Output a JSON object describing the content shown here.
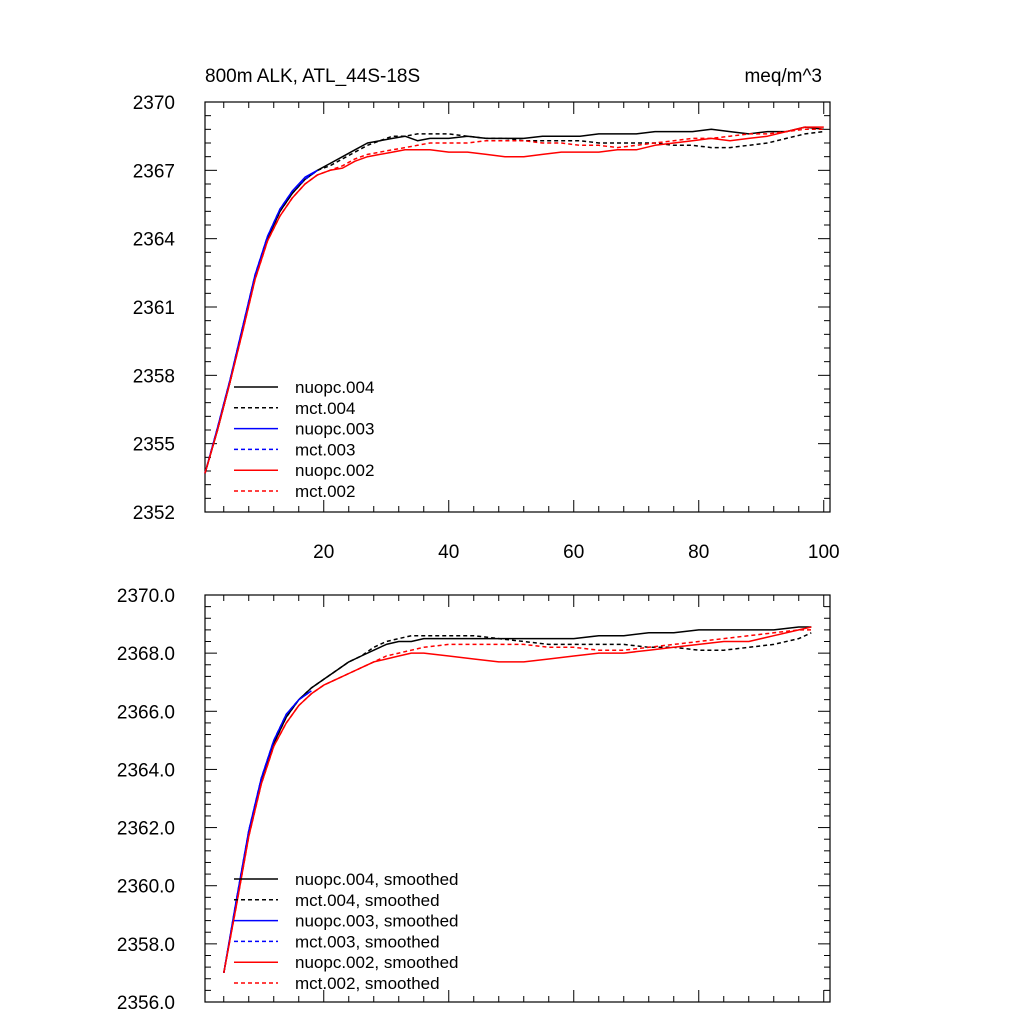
{
  "chart_data": [
    {
      "type": "line",
      "title": "800m ALK, ATL_44S-18S",
      "units": "meq/m^3",
      "xlabel": "",
      "ylabel": "",
      "xlim": [
        1,
        101
      ],
      "ylim": [
        2352,
        2370
      ],
      "x_ticks": [
        20,
        40,
        60,
        80,
        100
      ],
      "x_tick_labels": [
        "20",
        "40",
        "60",
        "80",
        "100"
      ],
      "y_ticks": [
        2352,
        2355,
        2358,
        2361,
        2364,
        2367,
        2370
      ],
      "y_tick_labels": [
        "2352",
        "2355",
        "2358",
        "2361",
        "2364",
        "2367",
        "2370"
      ],
      "legend_position": "bottom-left",
      "series": [
        {
          "name": "nuopc.004",
          "color": "#000000",
          "dash": "solid",
          "x": [
            1,
            3,
            5,
            7,
            9,
            11,
            13,
            15,
            17,
            19,
            21,
            23,
            25,
            27,
            29,
            31,
            33,
            35,
            37,
            40,
            43,
            46,
            49,
            52,
            55,
            58,
            61,
            64,
            67,
            70,
            73,
            76,
            79,
            82,
            85,
            88,
            91,
            94,
            97,
            100
          ],
          "y": [
            2353.7,
            2355.6,
            2357.7,
            2360.0,
            2362.3,
            2364.0,
            2365.2,
            2366.0,
            2366.6,
            2367.0,
            2367.3,
            2367.6,
            2367.9,
            2368.2,
            2368.3,
            2368.4,
            2368.5,
            2368.3,
            2368.4,
            2368.4,
            2368.5,
            2368.4,
            2368.4,
            2368.4,
            2368.5,
            2368.5,
            2368.5,
            2368.6,
            2368.6,
            2368.6,
            2368.7,
            2368.7,
            2368.7,
            2368.8,
            2368.7,
            2368.6,
            2368.7,
            2368.7,
            2368.9,
            2368.8
          ]
        },
        {
          "name": "mct.004",
          "color": "#000000",
          "dash": "dashed",
          "x": [
            1,
            3,
            5,
            7,
            9,
            11,
            13,
            15,
            17,
            19,
            21,
            23,
            25,
            27,
            29,
            31,
            33,
            35,
            37,
            40,
            43,
            46,
            49,
            52,
            55,
            58,
            61,
            64,
            67,
            70,
            73,
            76,
            79,
            82,
            85,
            88,
            91,
            94,
            97,
            100
          ],
          "y": [
            2353.7,
            2355.6,
            2357.7,
            2360.0,
            2362.3,
            2364.0,
            2365.2,
            2366.0,
            2366.6,
            2367.0,
            2367.2,
            2367.5,
            2367.8,
            2368.1,
            2368.3,
            2368.5,
            2368.5,
            2368.6,
            2368.6,
            2368.6,
            2368.5,
            2368.4,
            2368.4,
            2368.3,
            2368.3,
            2368.3,
            2368.3,
            2368.2,
            2368.2,
            2368.2,
            2368.2,
            2368.1,
            2368.1,
            2368.0,
            2368.0,
            2368.1,
            2368.2,
            2368.4,
            2368.6,
            2368.7
          ]
        },
        {
          "name": "nuopc.003",
          "color": "#0000ff",
          "dash": "solid",
          "x": [
            1,
            3,
            5,
            7,
            9,
            11,
            13,
            15,
            17,
            19
          ],
          "y": [
            2353.7,
            2355.7,
            2357.8,
            2360.1,
            2362.4,
            2364.1,
            2365.3,
            2366.1,
            2366.7,
            2367.0
          ]
        },
        {
          "name": "mct.003",
          "color": "#0000ff",
          "dash": "dashed",
          "x": [
            1,
            3,
            5,
            7,
            9,
            11,
            13,
            15,
            17,
            19
          ],
          "y": [
            2353.7,
            2355.7,
            2357.8,
            2360.1,
            2362.4,
            2364.1,
            2365.3,
            2366.1,
            2366.6,
            2367.0
          ]
        },
        {
          "name": "nuopc.002",
          "color": "#ff0000",
          "dash": "solid",
          "x": [
            1,
            3,
            5,
            7,
            9,
            11,
            13,
            15,
            17,
            19,
            21,
            23,
            25,
            27,
            29,
            31,
            33,
            35,
            37,
            40,
            43,
            46,
            49,
            52,
            55,
            58,
            61,
            64,
            67,
            70,
            73,
            76,
            79,
            82,
            85,
            88,
            91,
            94,
            97,
            100
          ],
          "y": [
            2353.7,
            2355.6,
            2357.7,
            2359.9,
            2362.2,
            2363.9,
            2365.0,
            2365.8,
            2366.4,
            2366.8,
            2367.0,
            2367.1,
            2367.4,
            2367.6,
            2367.7,
            2367.8,
            2367.9,
            2367.9,
            2367.9,
            2367.8,
            2367.8,
            2367.7,
            2367.6,
            2367.6,
            2367.7,
            2367.8,
            2367.8,
            2367.8,
            2367.9,
            2367.9,
            2368.1,
            2368.2,
            2368.3,
            2368.4,
            2368.3,
            2368.4,
            2368.5,
            2368.7,
            2368.9,
            2368.9
          ]
        },
        {
          "name": "mct.002",
          "color": "#ff0000",
          "dash": "dashed",
          "x": [
            1,
            3,
            5,
            7,
            9,
            11,
            13,
            15,
            17,
            19,
            21,
            23,
            25,
            27,
            29,
            31,
            33,
            35,
            37,
            40,
            43,
            46,
            49,
            52,
            55,
            58,
            61,
            64,
            67,
            70,
            73,
            76,
            79,
            82,
            85,
            88,
            91,
            94,
            97,
            100
          ],
          "y": [
            2353.7,
            2355.6,
            2357.7,
            2359.9,
            2362.2,
            2363.9,
            2365.0,
            2365.8,
            2366.4,
            2366.8,
            2367.0,
            2367.2,
            2367.5,
            2367.7,
            2367.8,
            2367.9,
            2368.0,
            2368.1,
            2368.2,
            2368.2,
            2368.2,
            2368.3,
            2368.3,
            2368.3,
            2368.2,
            2368.2,
            2368.1,
            2368.1,
            2368.0,
            2368.1,
            2368.2,
            2368.3,
            2368.4,
            2368.4,
            2368.5,
            2368.6,
            2368.6,
            2368.7,
            2368.8,
            2368.8
          ]
        }
      ]
    },
    {
      "type": "line",
      "title": "",
      "xlabel": "",
      "ylabel": "",
      "xlim": [
        1,
        101
      ],
      "ylim": [
        2356,
        2370
      ],
      "x_ticks": [
        20,
        40,
        60,
        80,
        100
      ],
      "x_tick_labels": [],
      "y_ticks": [
        2356,
        2358,
        2360,
        2362,
        2364,
        2366,
        2368,
        2370
      ],
      "y_tick_labels": [
        "2356.0",
        "2358.0",
        "2360.0",
        "2362.0",
        "2364.0",
        "2366.0",
        "2368.0",
        "2370.0"
      ],
      "legend_position": "bottom-left",
      "series": [
        {
          "name": "nuopc.004, smoothed",
          "color": "#000000",
          "dash": "solid",
          "x": [
            4,
            6,
            8,
            10,
            12,
            14,
            16,
            18,
            20,
            22,
            24,
            26,
            28,
            30,
            32,
            34,
            36,
            40,
            44,
            48,
            52,
            56,
            60,
            64,
            68,
            72,
            76,
            80,
            84,
            88,
            92,
            96,
            98
          ],
          "y": [
            2357.0,
            2359.4,
            2361.8,
            2363.6,
            2364.9,
            2365.8,
            2366.4,
            2366.8,
            2367.1,
            2367.4,
            2367.7,
            2367.9,
            2368.1,
            2368.3,
            2368.4,
            2368.4,
            2368.5,
            2368.5,
            2368.5,
            2368.5,
            2368.5,
            2368.5,
            2368.5,
            2368.6,
            2368.6,
            2368.7,
            2368.7,
            2368.8,
            2368.8,
            2368.8,
            2368.8,
            2368.9,
            2368.9
          ]
        },
        {
          "name": "mct.004, smoothed",
          "color": "#000000",
          "dash": "dashed",
          "x": [
            4,
            6,
            8,
            10,
            12,
            14,
            16,
            18,
            20,
            22,
            24,
            26,
            28,
            30,
            32,
            34,
            36,
            40,
            44,
            48,
            52,
            56,
            60,
            64,
            68,
            72,
            76,
            80,
            84,
            88,
            92,
            96,
            98
          ],
          "y": [
            2357.0,
            2359.4,
            2361.8,
            2363.6,
            2364.9,
            2365.8,
            2366.4,
            2366.8,
            2367.1,
            2367.4,
            2367.7,
            2367.9,
            2368.2,
            2368.4,
            2368.5,
            2368.6,
            2368.6,
            2368.6,
            2368.6,
            2368.5,
            2368.4,
            2368.3,
            2368.3,
            2368.3,
            2368.3,
            2368.2,
            2368.2,
            2368.1,
            2368.1,
            2368.2,
            2368.3,
            2368.5,
            2368.7
          ]
        },
        {
          "name": "nuopc.003, smoothed",
          "color": "#0000ff",
          "dash": "solid",
          "x": [
            4,
            6,
            8,
            10,
            12,
            14,
            16,
            18
          ],
          "y": [
            2357.0,
            2359.5,
            2361.9,
            2363.7,
            2365.0,
            2365.9,
            2366.4,
            2366.7
          ]
        },
        {
          "name": "mct.003, smoothed",
          "color": "#0000ff",
          "dash": "dashed",
          "x": [
            4,
            6,
            8,
            10,
            12,
            14,
            16,
            18
          ],
          "y": [
            2357.0,
            2359.5,
            2361.9,
            2363.7,
            2365.0,
            2365.9,
            2366.4,
            2366.7
          ]
        },
        {
          "name": "nuopc.002, smoothed",
          "color": "#ff0000",
          "dash": "solid",
          "x": [
            4,
            6,
            8,
            10,
            12,
            14,
            16,
            18,
            20,
            22,
            24,
            26,
            28,
            30,
            32,
            34,
            36,
            40,
            44,
            48,
            52,
            56,
            60,
            64,
            68,
            72,
            76,
            80,
            84,
            88,
            92,
            96,
            98
          ],
          "y": [
            2357.0,
            2359.3,
            2361.7,
            2363.5,
            2364.8,
            2365.6,
            2366.2,
            2366.6,
            2366.9,
            2367.1,
            2367.3,
            2367.5,
            2367.7,
            2367.8,
            2367.9,
            2368.0,
            2368.0,
            2367.9,
            2367.8,
            2367.7,
            2367.7,
            2367.8,
            2367.9,
            2368.0,
            2368.0,
            2368.1,
            2368.2,
            2368.3,
            2368.4,
            2368.4,
            2368.6,
            2368.8,
            2368.9
          ]
        },
        {
          "name": "mct.002, smoothed",
          "color": "#ff0000",
          "dash": "dashed",
          "x": [
            4,
            6,
            8,
            10,
            12,
            14,
            16,
            18,
            20,
            22,
            24,
            26,
            28,
            30,
            32,
            34,
            36,
            40,
            44,
            48,
            52,
            56,
            60,
            64,
            68,
            72,
            76,
            80,
            84,
            88,
            92,
            96,
            98
          ],
          "y": [
            2357.0,
            2359.3,
            2361.7,
            2363.5,
            2364.8,
            2365.6,
            2366.2,
            2366.6,
            2366.9,
            2367.1,
            2367.3,
            2367.5,
            2367.7,
            2367.9,
            2368.0,
            2368.1,
            2368.2,
            2368.3,
            2368.3,
            2368.3,
            2368.3,
            2368.2,
            2368.2,
            2368.1,
            2368.1,
            2368.2,
            2368.3,
            2368.4,
            2368.5,
            2368.6,
            2368.7,
            2368.8,
            2368.8
          ]
        }
      ]
    }
  ]
}
